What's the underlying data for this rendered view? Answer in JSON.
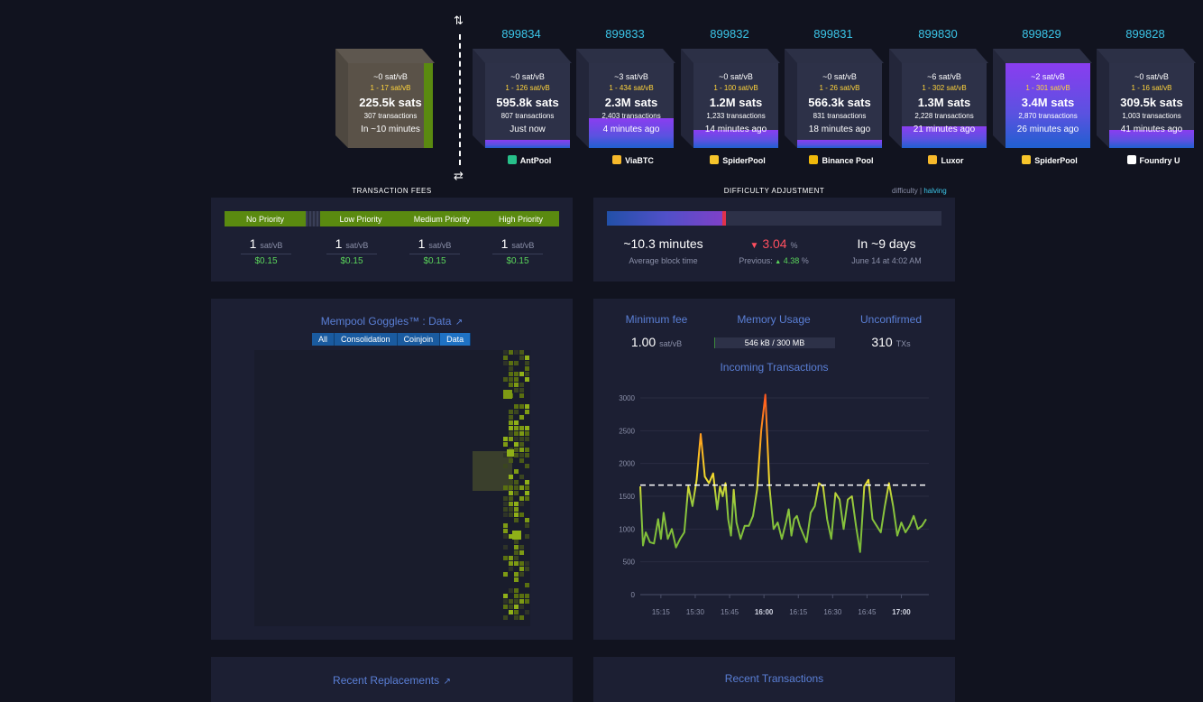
{
  "colors": {
    "bg": "#11131f",
    "card": "#1c1f33",
    "accent_blue": "#3bc5e8",
    "link_blue": "#5a7fd6",
    "fee_yellow": "#ffd43b",
    "green": "#5bd65b",
    "purple": "#8a3df0"
  },
  "icons": {
    "switch_up_down": "⇅",
    "switch_left_right": "⇄",
    "external": "↗"
  },
  "pending_block": {
    "fee": "~0 sat/vB",
    "range": "1 - 17 sat/vB",
    "size": "225.5k sats",
    "tx": "307 transactions",
    "time": "In ~10 minutes"
  },
  "blocks": [
    {
      "height": "899834",
      "fee": "~0 sat/vB",
      "range": "1 - 126 sat/vB",
      "size": "595.8k sats",
      "tx": "807 transactions",
      "time": "Just now",
      "pool": "AntPool",
      "fill": 0.2,
      "pool_icon_color": "#27c08a"
    },
    {
      "height": "899833",
      "fee": "~3 sat/vB",
      "range": "1 - 434 sat/vB",
      "size": "2.3M sats",
      "tx": "2,403 transactions",
      "time": "4 minutes ago",
      "pool": "ViaBTC",
      "fill": 0.7,
      "pool_icon_color": "#f7b92b"
    },
    {
      "height": "899832",
      "fee": "~0 sat/vB",
      "range": "1 - 100 sat/vB",
      "size": "1.2M sats",
      "tx": "1,233 transactions",
      "time": "14 minutes ago",
      "pool": "SpiderPool",
      "fill": 0.42,
      "pool_icon_color": "#f7c52b"
    },
    {
      "height": "899831",
      "fee": "~0 sat/vB",
      "range": "1 - 26 sat/vB",
      "size": "566.3k sats",
      "tx": "831 transactions",
      "time": "18 minutes ago",
      "pool": "Binance Pool",
      "fill": 0.2,
      "pool_icon_color": "#f0b90b"
    },
    {
      "height": "899830",
      "fee": "~6 sat/vB",
      "range": "1 - 302 sat/vB",
      "size": "1.3M sats",
      "tx": "2,228 transactions",
      "time": "21 minutes ago",
      "pool": "Luxor",
      "fill": 0.52,
      "pool_icon_color": "#f7b92b"
    },
    {
      "height": "899829",
      "fee": "~2 sat/vB",
      "range": "1 - 301 sat/vB",
      "size": "3.4M sats",
      "tx": "2,870 transactions",
      "time": "26 minutes ago",
      "pool": "SpiderPool",
      "fill": 1.0,
      "pool_icon_color": "#f7c52b"
    },
    {
      "height": "899828",
      "fee": "~0 sat/vB",
      "range": "1 - 16 sat/vB",
      "size": "309.5k sats",
      "tx": "1,003 transactions",
      "time": "41 minutes ago",
      "pool": "Foundry U",
      "fill": 0.42,
      "pool_icon_color": "#ffffff"
    }
  ],
  "fees": {
    "title": "TRANSACTION FEES",
    "labels": [
      "No Priority",
      "Low Priority",
      "Medium Priority",
      "High Priority"
    ],
    "values": [
      {
        "rate": "1",
        "unit": "sat/vB",
        "usd": "$0.15"
      },
      {
        "rate": "1",
        "unit": "sat/vB",
        "usd": "$0.15"
      },
      {
        "rate": "1",
        "unit": "sat/vB",
        "usd": "$0.15"
      },
      {
        "rate": "1",
        "unit": "sat/vB",
        "usd": "$0.15"
      }
    ]
  },
  "difficulty": {
    "title": "DIFFICULTY ADJUSTMENT",
    "toggle_difficulty": "difficulty",
    "toggle_sep": "|",
    "toggle_halving": "halving",
    "progress": 0.35,
    "block_time": "~10.3 minutes",
    "block_time_label": "Average block time",
    "change_arrow": "▼",
    "change": "3.04",
    "change_unit": "%",
    "previous_label": "Previous:",
    "previous_arrow": "▲",
    "previous": "4.38",
    "previous_unit": "%",
    "eta": "In ~9 days",
    "eta_date": "June 14 at 4:02 AM"
  },
  "goggles": {
    "title": "Mempool Goggles™ : Data",
    "filters": [
      "All",
      "Consolidation",
      "Coinjoin",
      "Data"
    ]
  },
  "stats": {
    "min_fee_label": "Minimum fee",
    "min_fee": "1.00",
    "min_fee_unit": "sat/vB",
    "memory_label": "Memory Usage",
    "memory": "546 kB / 300 MB",
    "memory_fraction": 0.002,
    "unconfirmed_label": "Unconfirmed",
    "unconfirmed": "310",
    "unconfirmed_unit": "TXs",
    "incoming_title": "Incoming Transactions"
  },
  "chart_data": {
    "type": "line",
    "title": "Incoming Transactions",
    "ylim": [
      0,
      3000
    ],
    "y_ticks": [
      0,
      500,
      1000,
      1500,
      2000,
      2500,
      3000
    ],
    "x_ticks": [
      {
        "label": "15:15",
        "t": 15.25,
        "bold": false
      },
      {
        "label": "15:30",
        "t": 15.5,
        "bold": false
      },
      {
        "label": "15:45",
        "t": 15.75,
        "bold": false
      },
      {
        "label": "16:00",
        "t": 16.0,
        "bold": true
      },
      {
        "label": "16:15",
        "t": 16.25,
        "bold": false
      },
      {
        "label": "16:30",
        "t": 16.5,
        "bold": false
      },
      {
        "label": "16:45",
        "t": 16.75,
        "bold": false
      },
      {
        "label": "17:00",
        "t": 17.0,
        "bold": true
      }
    ],
    "xlim": [
      15.1,
      17.2
    ],
    "reference_line": 1670,
    "series": [
      {
        "x": [
          15.1,
          15.12,
          15.14,
          15.17,
          15.2,
          15.23,
          15.25,
          15.27,
          15.3,
          15.33,
          15.36,
          15.39,
          15.42,
          15.45,
          15.48,
          15.51,
          15.54,
          15.57,
          15.6,
          15.63,
          15.66,
          15.68,
          15.7,
          15.72,
          15.74,
          15.76,
          15.78,
          15.8,
          15.83,
          15.86,
          15.89,
          15.92,
          15.95,
          15.98,
          16.01,
          16.04,
          16.07,
          16.1,
          16.13,
          16.16,
          16.18,
          16.2,
          16.22,
          16.24,
          16.26,
          16.28,
          16.31,
          16.34,
          16.37,
          16.4,
          16.43,
          16.46,
          16.49,
          16.52,
          16.55,
          16.58,
          16.61,
          16.64,
          16.67,
          16.7,
          16.73,
          16.76,
          16.79,
          16.82,
          16.85,
          16.88,
          16.91,
          16.94,
          16.97,
          17.0,
          17.03,
          17.06,
          17.09,
          17.12,
          17.15,
          17.18
        ],
        "y": [
          1650,
          750,
          950,
          800,
          780,
          1150,
          850,
          1250,
          850,
          1000,
          720,
          850,
          950,
          1650,
          1350,
          1750,
          2450,
          1800,
          1700,
          1850,
          1300,
          1650,
          1500,
          1700,
          1150,
          900,
          1600,
          1100,
          850,
          1050,
          1050,
          1200,
          1600,
          2500,
          3050,
          1650,
          1000,
          1100,
          850,
          1100,
          1300,
          900,
          1150,
          1200,
          1050,
          950,
          800,
          1250,
          1350,
          1700,
          1650,
          1150,
          850,
          1550,
          1450,
          1000,
          1450,
          1500,
          1050,
          650,
          1650,
          1750,
          1150,
          1050,
          950,
          1350,
          1700,
          1350,
          900,
          1100,
          950,
          1050,
          1200,
          1000,
          1050,
          1150
        ]
      }
    ]
  },
  "bottom": {
    "replacements": "Recent Replacements",
    "transactions": "Recent Transactions"
  }
}
